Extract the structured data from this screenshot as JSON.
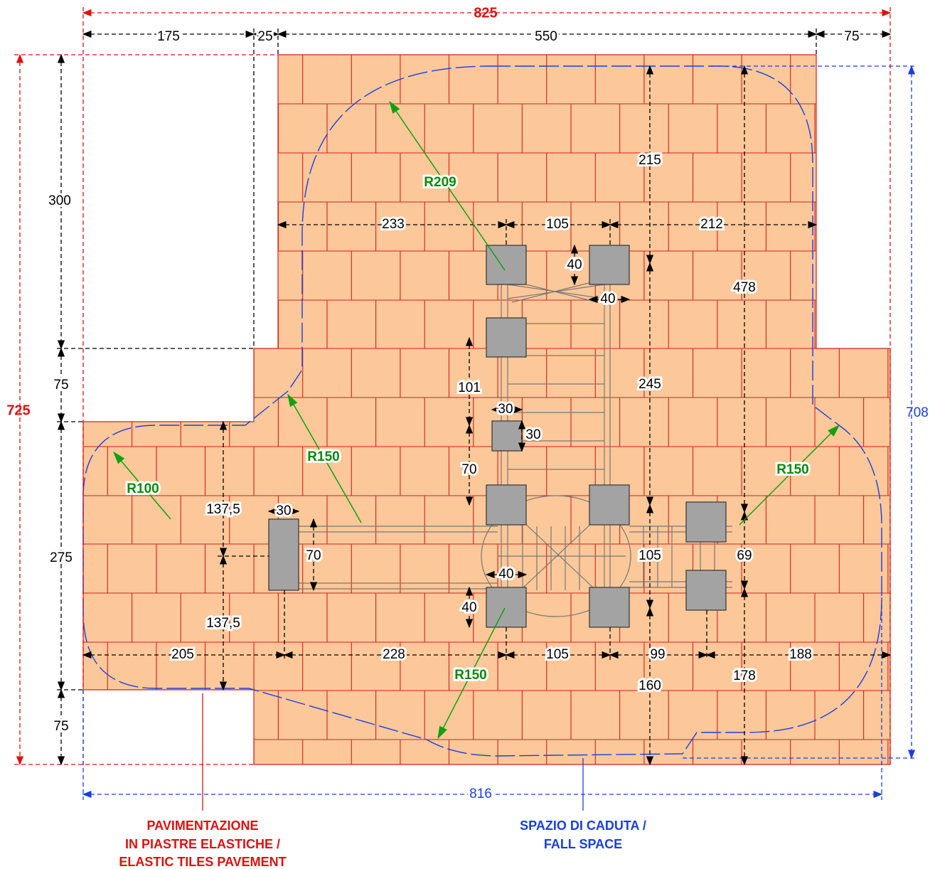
{
  "overall": {
    "width": "825",
    "depth": "725"
  },
  "dimensions": [
    "175",
    "25",
    "550",
    "75",
    "300",
    "75",
    "275",
    "75",
    "215",
    "233",
    "105",
    "212",
    "478",
    "40",
    "40",
    "101",
    "245",
    "30",
    "30",
    "70",
    "137,5",
    "30",
    "70",
    "137,5",
    "105",
    "69",
    "40",
    "40",
    "205",
    "228",
    "105",
    "99",
    "188",
    "178",
    "160"
  ],
  "radii": [
    "R209",
    "R150",
    "R100",
    "R150",
    "R150"
  ],
  "fall_space_dimensions": {
    "depth": "708",
    "width": "816"
  },
  "labels": {
    "pavement": [
      "PAVIMENTAZIONE",
      "IN PIASTRE ELASTICHE /",
      "ELASTIC TILES PAVEMENT"
    ],
    "fall_space": [
      "SPAZIO DI CADUTA /",
      "FALL SPACE"
    ]
  }
}
